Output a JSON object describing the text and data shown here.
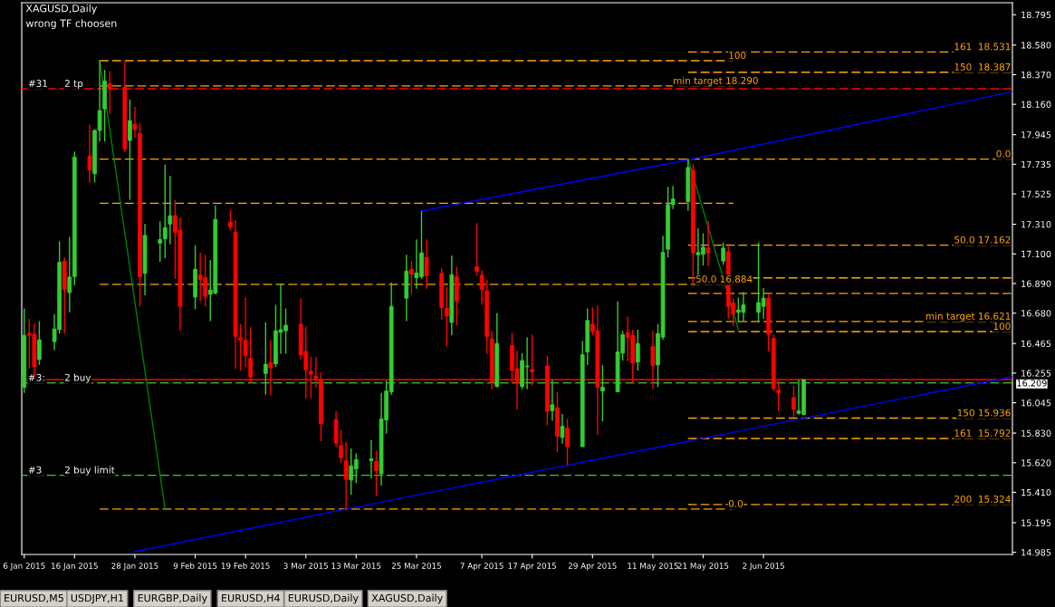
{
  "chart_data": {
    "type": "candlestick",
    "title": "XAGUSD,Daily",
    "subtitle": "wrong TF choosen",
    "x": [
      "2015-01-06",
      "2015-01-07",
      "2015-01-08",
      "2015-01-09",
      "2015-01-12",
      "2015-01-13",
      "2015-01-14",
      "2015-01-15",
      "2015-01-16",
      "2015-01-19",
      "2015-01-20",
      "2015-01-21",
      "2015-01-22",
      "2015-01-23",
      "2015-01-26",
      "2015-01-27",
      "2015-01-28",
      "2015-01-29",
      "2015-01-30",
      "2015-02-02",
      "2015-02-03",
      "2015-02-04",
      "2015-02-05",
      "2015-02-06",
      "2015-02-09",
      "2015-02-10",
      "2015-02-11",
      "2015-02-12",
      "2015-02-13",
      "2015-02-16",
      "2015-02-17",
      "2015-02-18",
      "2015-02-19",
      "2015-02-20",
      "2015-02-23",
      "2015-02-24",
      "2015-02-25",
      "2015-02-26",
      "2015-02-27",
      "2015-03-02",
      "2015-03-03",
      "2015-03-04",
      "2015-03-05",
      "2015-03-06",
      "2015-03-09",
      "2015-03-10",
      "2015-03-11",
      "2015-03-12",
      "2015-03-13",
      "2015-03-16",
      "2015-03-17",
      "2015-03-18",
      "2015-03-19",
      "2015-03-20",
      "2015-03-23",
      "2015-03-24",
      "2015-03-25",
      "2015-03-26",
      "2015-03-27",
      "2015-03-30",
      "2015-03-31",
      "2015-04-01",
      "2015-04-02",
      "2015-04-06",
      "2015-04-07",
      "2015-04-08",
      "2015-04-09",
      "2015-04-10",
      "2015-04-13",
      "2015-04-14",
      "2015-04-15",
      "2015-04-16",
      "2015-04-17",
      "2015-04-20",
      "2015-04-21",
      "2015-04-22",
      "2015-04-23",
      "2015-04-24",
      "2015-04-27",
      "2015-04-28",
      "2015-04-29",
      "2015-04-30",
      "2015-05-01",
      "2015-05-04",
      "2015-05-05",
      "2015-05-06",
      "2015-05-07",
      "2015-05-08",
      "2015-05-11",
      "2015-05-12",
      "2015-05-13",
      "2015-05-14",
      "2015-05-15",
      "2015-05-18",
      "2015-05-19",
      "2015-05-20",
      "2015-05-21",
      "2015-05-22",
      "2015-05-25",
      "2015-05-26",
      "2015-05-27",
      "2015-05-28",
      "2015-05-29",
      "2015-06-01",
      "2015-06-02",
      "2015-06-03",
      "2015-06-04",
      "2015-06-05",
      "2015-06-08",
      "2015-06-09",
      "2015-06-10"
    ],
    "ohlc": [
      [
        16.155,
        16.713,
        16.115,
        16.523
      ],
      [
        16.536,
        16.641,
        16.286,
        16.523
      ],
      [
        16.531,
        16.607,
        16.228,
        16.299
      ],
      [
        16.352,
        16.623,
        16.313,
        16.491
      ],
      [
        16.478,
        16.673,
        16.418,
        16.568
      ],
      [
        16.563,
        17.189,
        16.536,
        17.041
      ],
      [
        17.049,
        17.076,
        16.536,
        16.847
      ],
      [
        16.826,
        17.22,
        16.686,
        16.936
      ],
      [
        16.939,
        17.825,
        16.878,
        17.786
      ],
      [
        17.794,
        18.016,
        17.602,
        17.694
      ],
      [
        17.668,
        17.983,
        17.607,
        17.975
      ],
      [
        17.975,
        18.47,
        17.896,
        18.115
      ],
      [
        18.128,
        18.404,
        17.896,
        18.325
      ],
      [
        18.307,
        18.396,
        18.094,
        18.27
      ],
      [
        18.281,
        18.465,
        17.82,
        17.844
      ],
      [
        17.904,
        18.194,
        17.483,
        18.044
      ],
      [
        18.018,
        18.141,
        17.923,
        17.981
      ],
      [
        17.954,
        18.028,
        16.728,
        16.939
      ],
      [
        16.962,
        17.312,
        16.807,
        17.231
      ],
      [
        17.176,
        17.331,
        17.044,
        17.202
      ],
      [
        17.207,
        17.733,
        17.07,
        17.286
      ],
      [
        17.312,
        17.654,
        17.168,
        17.37
      ],
      [
        17.37,
        17.483,
        16.923,
        17.252
      ],
      [
        17.268,
        17.357,
        16.555,
        16.728
      ],
      [
        16.794,
        17.162,
        16.707,
        16.991
      ],
      [
        16.949,
        17.11,
        16.765,
        16.918
      ],
      [
        16.931,
        17.094,
        16.728,
        16.799
      ],
      [
        16.813,
        17.057,
        16.623,
        16.844
      ],
      [
        16.823,
        17.444,
        16.813,
        17.344
      ],
      [
        17.326,
        17.41,
        17.265,
        17.291
      ],
      [
        17.254,
        17.339,
        16.286,
        16.515
      ],
      [
        16.505,
        16.602,
        16.273,
        16.489
      ],
      [
        16.489,
        16.794,
        16.299,
        16.378
      ],
      [
        16.36,
        16.581,
        16.181,
        16.228
      ],
      [
        16.252,
        16.615,
        16.102,
        16.318
      ],
      [
        16.331,
        16.492,
        16.097,
        16.292
      ],
      [
        16.321,
        16.739,
        16.299,
        16.555
      ],
      [
        16.544,
        16.891,
        16.392,
        16.563
      ],
      [
        16.555,
        16.713,
        16.392,
        16.594
      ],
      [
        16.602,
        16.786,
        16.352,
        16.384
      ],
      [
        16.41,
        16.584,
        16.076,
        16.278
      ],
      [
        16.268,
        16.37,
        16.076,
        16.247
      ],
      [
        16.234,
        16.37,
        16.155,
        16.213
      ],
      [
        16.207,
        16.26,
        15.773,
        15.897
      ],
      [
        15.926,
        15.984,
        15.734,
        15.76
      ],
      [
        15.742,
        15.852,
        15.615,
        15.655
      ],
      [
        15.634,
        15.768,
        15.292,
        15.502
      ],
      [
        15.497,
        15.721,
        15.392,
        15.597
      ],
      [
        15.576,
        15.686,
        15.476,
        15.642
      ],
      [
        15.634,
        15.781,
        15.51,
        15.647
      ],
      [
        15.629,
        15.708,
        15.384,
        15.563
      ],
      [
        15.542,
        16.115,
        15.458,
        15.931
      ],
      [
        15.923,
        16.202,
        15.826,
        16.128
      ],
      [
        16.123,
        16.897,
        16.102,
        16.728
      ],
      [
        16.786,
        17.094,
        16.623,
        16.978
      ],
      [
        16.991,
        17.049,
        16.813,
        16.957
      ],
      [
        16.931,
        17.202,
        16.852,
        16.965
      ],
      [
        16.939,
        17.404,
        16.923,
        17.107
      ],
      [
        17.076,
        17.202,
        16.852,
        16.944
      ],
      [
        16.962,
        17.002,
        16.634,
        16.72
      ],
      [
        16.713,
        16.865,
        16.444,
        16.66
      ],
      [
        16.615,
        17.089,
        16.523,
        16.952
      ],
      [
        16.939,
        17.01,
        16.594,
        16.765
      ],
      [
        17.01,
        17.318,
        16.944,
        16.976
      ],
      [
        16.949,
        16.984,
        16.739,
        16.847
      ],
      [
        16.839,
        16.918,
        16.392,
        16.515
      ],
      [
        16.497,
        16.555,
        16.142,
        16.189
      ],
      [
        16.16,
        16.681,
        16.155,
        16.465
      ],
      [
        16.452,
        16.542,
        16.181,
        16.273
      ],
      [
        16.286,
        16.413,
        15.997,
        16.181
      ],
      [
        16.16,
        16.397,
        16.142,
        16.344
      ],
      [
        16.3,
        16.51,
        16.142,
        16.305
      ],
      [
        16.281,
        16.528,
        16.168,
        16.265
      ],
      [
        16.305,
        16.378,
        15.886,
        15.984
      ],
      [
        15.989,
        16.207,
        15.918,
        16.031
      ],
      [
        16.01,
        16.123,
        15.694,
        15.807
      ],
      [
        15.799,
        15.965,
        15.755,
        15.879
      ],
      [
        15.865,
        15.931,
        15.602,
        15.734
      ],
      [
        15.734,
        16.484,
        15.734,
        16.386
      ],
      [
        16.405,
        16.713,
        16.313,
        16.628
      ],
      [
        16.602,
        16.72,
        16.523,
        16.549
      ],
      [
        16.555,
        16.734,
        15.818,
        16.155
      ],
      [
        16.128,
        16.313,
        15.913,
        16.155
      ],
      [
        16.123,
        16.765,
        16.123,
        16.405
      ],
      [
        16.397,
        16.555,
        16.344,
        16.528
      ],
      [
        16.541,
        16.655,
        16.339,
        16.51
      ],
      [
        16.523,
        16.563,
        16.181,
        16.326
      ],
      [
        16.334,
        16.563,
        16.273,
        16.465
      ],
      [
        16.444,
        16.555,
        16.142,
        16.308
      ],
      [
        16.313,
        16.602,
        16.155,
        16.536
      ],
      [
        16.51,
        17.228,
        16.492,
        17.11
      ],
      [
        17.133,
        17.575,
        17.076,
        17.449
      ],
      [
        17.449,
        17.581,
        17.418,
        17.489
      ],
      [
        17.47,
        17.773,
        17.405,
        17.712
      ],
      [
        17.694,
        17.739,
        16.878,
        17.107
      ],
      [
        17.094,
        17.281,
        16.949,
        17.11
      ],
      [
        17.097,
        17.247,
        17.018,
        17.147
      ],
      [
        17.141,
        17.333,
        17.015,
        17.107
      ],
      [
        17.049,
        17.181,
        17.023,
        17.141
      ],
      [
        17.115,
        17.155,
        16.641,
        16.728
      ],
      [
        16.752,
        16.786,
        16.589,
        16.673
      ],
      [
        16.686,
        16.791,
        16.615,
        16.702
      ],
      [
        16.686,
        16.831,
        16.623,
        16.739
      ],
      [
        16.686,
        17.181,
        16.615,
        16.755
      ],
      [
        16.728,
        16.857,
        16.641,
        16.786
      ],
      [
        16.786,
        16.813,
        16.41,
        16.531
      ],
      [
        16.502,
        16.528,
        16.128,
        16.147
      ],
      [
        16.134,
        16.202,
        15.984,
        16.115
      ],
      [
        16.081,
        16.168,
        15.939,
        15.997
      ],
      [
        15.97,
        16.207,
        15.962,
        15.989
      ],
      [
        15.962,
        16.212,
        15.957,
        16.209
      ]
    ],
    "colors": [
      "#32cd32",
      "#ff0000",
      "#ff0000",
      "#32cd32",
      "#32cd32",
      "#32cd32",
      "#ff0000",
      "#32cd32",
      "#32cd32",
      "#ff0000",
      "#32cd32",
      "#32cd32",
      "#32cd32",
      "#ff0000",
      "#ff0000",
      "#32cd32",
      "#ff0000",
      "#ff0000",
      "#32cd32",
      "#32cd32",
      "#32cd32",
      "#32cd32",
      "#ff0000",
      "#ff0000",
      "#32cd32",
      "#ff0000",
      "#ff0000",
      "#32cd32",
      "#32cd32",
      "#ff0000",
      "#ff0000",
      "#ff0000",
      "#ff0000",
      "#ff0000",
      "#32cd32",
      "#ff0000",
      "#32cd32",
      "#32cd32",
      "#32cd32",
      "#ff0000",
      "#ff0000",
      "#ff0000",
      "#ff0000",
      "#ff0000",
      "#ff0000",
      "#ff0000",
      "#ff0000",
      "#32cd32",
      "#32cd32",
      "#32cd32",
      "#ff0000",
      "#32cd32",
      "#32cd32",
      "#32cd32",
      "#32cd32",
      "#ff0000",
      "#32cd32",
      "#32cd32",
      "#ff0000",
      "#ff0000",
      "#ff0000",
      "#32cd32",
      "#ff0000",
      "#ff0000",
      "#ff0000",
      "#ff0000",
      "#ff0000",
      "#32cd32",
      "#ff0000",
      "#ff0000",
      "#32cd32",
      "#32cd32",
      "#ff0000",
      "#ff0000",
      "#32cd32",
      "#ff0000",
      "#32cd32",
      "#ff0000",
      "#32cd32",
      "#32cd32",
      "#ff0000",
      "#ff0000",
      "#32cd32",
      "#32cd32",
      "#32cd32",
      "#ff0000",
      "#ff0000",
      "#32cd32",
      "#ff0000",
      "#32cd32",
      "#32cd32",
      "#32cd32",
      "#32cd32",
      "#32cd32",
      "#ff0000",
      "#32cd32",
      "#32cd32",
      "#ff0000",
      "#32cd32",
      "#ff0000",
      "#ff0000",
      "#32cd32",
      "#32cd32",
      "#32cd32",
      "#32cd32",
      "#ff0000",
      "#ff0000",
      "#ff0000",
      "#ff0000",
      "#32cd32",
      "#32cd32"
    ],
    "series": [
      {
        "type": "line",
        "x": [
          "2015-01-21",
          "2015-05-27"
        ],
        "values": [
          18.469,
          18.469
        ],
        "color": "#ffa500",
        "line_style": "dashed"
      },
      {
        "type": "line",
        "x": [
          "2015-01-21",
          "2015-05-27"
        ],
        "values": [
          18.29,
          18.29
        ],
        "color": "#ffa500",
        "line_style": "dashed"
      },
      {
        "type": "line",
        "x": [
          "2015-01-21",
          "2015-07-21T12:00"
        ],
        "values": [
          17.772,
          17.772
        ],
        "color": "#ffa500",
        "line_style": "dashed"
      },
      {
        "type": "line",
        "x": [
          "2015-01-21",
          "2015-05-27"
        ],
        "values": [
          17.459,
          17.459
        ],
        "color": "#ffa500",
        "line_style": "dashed"
      },
      {
        "type": "line",
        "x": [
          "2015-01-21",
          "2015-05-27"
        ],
        "values": [
          16.884,
          16.884
        ],
        "color": "#ffa500",
        "line_style": "dashed"
      },
      {
        "type": "line",
        "x": [
          "2015-01-21",
          "2015-05-27"
        ],
        "values": [
          15.292,
          15.292
        ],
        "color": "#ffa500",
        "line_style": "dashed"
      },
      {
        "type": "line",
        "x": [
          "2015-05-18",
          "2015-07-21T12:00"
        ],
        "values": [
          18.531,
          18.531
        ],
        "color": "#ffa500",
        "line_style": "dashed"
      },
      {
        "type": "line",
        "x": [
          "2015-05-18",
          "2015-07-21T12:00"
        ],
        "values": [
          18.387,
          18.387
        ],
        "color": "#ffa500",
        "line_style": "dashed"
      },
      {
        "type": "line",
        "x": [
          "2015-05-18",
          "2015-07-21T12:00"
        ],
        "values": [
          17.162,
          17.162
        ],
        "color": "#ffa500",
        "line_style": "dashed"
      },
      {
        "type": "line",
        "x": [
          "2015-05-18",
          "2015-07-21T12:00"
        ],
        "values": [
          16.93,
          16.93
        ],
        "color": "#ffa500",
        "line_style": "dashed"
      },
      {
        "type": "line",
        "x": [
          "2015-05-18",
          "2015-07-21T12:00"
        ],
        "values": [
          16.82,
          16.82
        ],
        "color": "#ffa500",
        "line_style": "dashed"
      },
      {
        "type": "line",
        "x": [
          "2015-05-18",
          "2015-07-21T12:00"
        ],
        "values": [
          16.621,
          16.621
        ],
        "color": "#ffa500",
        "line_style": "dashed"
      },
      {
        "type": "line",
        "x": [
          "2015-05-18",
          "2015-07-21T12:00"
        ],
        "values": [
          16.549,
          16.549
        ],
        "color": "#ffa500",
        "line_style": "dashed"
      },
      {
        "type": "line",
        "x": [
          "2015-05-18",
          "2015-07-21T12:00"
        ],
        "values": [
          15.936,
          15.936
        ],
        "color": "#ffa500",
        "line_style": "dashed"
      },
      {
        "type": "line",
        "x": [
          "2015-05-18",
          "2015-07-21T12:00"
        ],
        "values": [
          15.792,
          15.792
        ],
        "color": "#ffa500",
        "line_style": "dashed"
      },
      {
        "type": "line",
        "x": [
          "2015-05-18",
          "2015-07-21T12:00"
        ],
        "values": [
          15.324,
          15.324
        ],
        "color": "#ffa500",
        "line_style": "dashed"
      },
      {
        "type": "line",
        "x": [
          "2015-03-26",
          "2015-05-18",
          "2015-07-21T12:00"
        ],
        "values": [
          17.404,
          17.766,
          18.25
        ],
        "color": "#0000ff",
        "line_style": "solid"
      },
      {
        "type": "line",
        "x": [
          "2015-01-28",
          "2015-03-11",
          "2015-04-24",
          "2015-07-21T12:00"
        ],
        "values": [
          14.99,
          15.292,
          15.602,
          16.23
        ],
        "color": "#0000ff",
        "line_style": "solid"
      },
      {
        "type": "line",
        "x": [
          "2015-01-21",
          "2015-02-03"
        ],
        "values": [
          18.47,
          15.292
        ],
        "color": "#008000",
        "line_style": "solid"
      },
      {
        "type": "line",
        "x": [
          "2015-05-18",
          "2015-05-28"
        ],
        "values": [
          17.773,
          16.564
        ],
        "color": "#008000",
        "line_style": "solid"
      }
    ],
    "ref_lines": [
      {
        "axis": "y",
        "value": 18.27,
        "color": "#ff0000",
        "line_style": "dashed"
      },
      {
        "axis": "y",
        "value": 16.186,
        "color": "#32cd32",
        "line_style": "dashed"
      },
      {
        "axis": "y",
        "value": 15.531,
        "color": "#32cd32",
        "line_style": "dashed"
      },
      {
        "axis": "y",
        "value": 16.209,
        "label": "16.209",
        "color": "#ff0000",
        "line_style": "solid"
      }
    ],
    "annotations": [
      {
        "text": "#31",
        "x": "2015-01-06T18:00",
        "y": 18.27
      },
      {
        "text": "2 tp",
        "x": "2015-01-14",
        "y": 18.27
      },
      {
        "text": "#3:",
        "x": "2015-01-06T18:00",
        "y": 16.186
      },
      {
        "text": "2 buy",
        "x": "2015-01-14",
        "y": 16.186
      },
      {
        "text": "#3",
        "x": "2015-01-06T18:00",
        "y": 15.531
      },
      {
        "text": "2 buy limit",
        "x": "2015-01-14",
        "y": 15.531
      },
      {
        "text": "100",
        "x": "2015-05-26",
        "y": 18.469
      },
      {
        "text": "min target 18.290",
        "x": "2015-05-15",
        "y": 18.29
      },
      {
        "text": "50.0 16.884",
        "x": "2015-05-19T12:00",
        "y": 16.884
      },
      {
        "text": "0.0",
        "x": "2015-05-26",
        "y": 15.292
      },
      {
        "text": "161  18.531",
        "y": 18.531
      },
      {
        "text": "150  18.387",
        "y": 18.387
      },
      {
        "text": "0.0",
        "y": 17.772
      },
      {
        "text": "50.0 17.162",
        "y": 17.162
      },
      {
        "text": "min target 16.621",
        "y": 16.621
      },
      {
        "text": "100",
        "y": 16.549
      },
      {
        "text": "150 15.936",
        "y": 15.936
      },
      {
        "text": "161  15.792",
        "y": 15.792
      },
      {
        "text": "200  15.324",
        "y": 15.324
      },
      "EURUSD,M5",
      "USDJPY,H1",
      "EURGBP,Daily",
      "EURUSD,H4",
      "EURUSD,Daily",
      "XAGUSD,Daily"
    ],
    "xlim": [
      "2015-01-05T12:00",
      "2015-07-21T12:00"
    ],
    "xticks": [
      {
        "value": "2015-01-06",
        "label": "6 Jan 2015"
      },
      {
        "value": "2015-01-16",
        "label": "16 Jan 2015"
      },
      {
        "value": "2015-01-28",
        "label": "28 Jan 2015"
      },
      {
        "value": "2015-02-09",
        "label": "9 Feb 2015"
      },
      {
        "value": "2015-02-19",
        "label": "19 Feb 2015"
      },
      {
        "value": "2015-03-03",
        "label": "3 Mar 2015"
      },
      {
        "value": "2015-03-13",
        "label": "13 Mar 2015"
      },
      {
        "value": "2015-03-25",
        "label": "25 Mar 2015"
      },
      {
        "value": "2015-04-07",
        "label": "7 Apr 2015"
      },
      {
        "value": "2015-04-17",
        "label": "17 Apr 2015"
      },
      {
        "value": "2015-04-29",
        "label": "29 Apr 2015"
      },
      {
        "value": "2015-05-11",
        "label": "11 May 2015"
      },
      {
        "value": "2015-05-21",
        "label": "21 May 2015"
      },
      {
        "value": "2015-06-02",
        "label": "2 Jun 2015"
      }
    ],
    "ylim": [
      14.97,
      18.88
    ],
    "yticks": [
      {
        "value": 14.985,
        "label": "14.985"
      },
      {
        "value": 15.195,
        "label": "15.195"
      },
      {
        "value": 15.41,
        "label": "15.410"
      },
      {
        "value": 15.62,
        "label": "15.620"
      },
      {
        "value": 15.83,
        "label": "15.830"
      },
      {
        "value": 16.045,
        "label": "16.045"
      },
      {
        "value": 16.255,
        "label": "16.255"
      },
      {
        "value": 16.465,
        "label": "16.465"
      },
      {
        "value": 16.68,
        "label": "16.680"
      },
      {
        "value": 16.89,
        "label": "16.890"
      },
      {
        "value": 17.1,
        "label": "17.100"
      },
      {
        "value": 17.31,
        "label": "17.310"
      },
      {
        "value": 17.525,
        "label": "17.525"
      },
      {
        "value": 17.735,
        "label": "17.735"
      },
      {
        "value": 17.945,
        "label": "17.945"
      },
      {
        "value": 18.16,
        "label": "18.160"
      },
      {
        "value": 18.37,
        "label": "18.370"
      },
      {
        "value": 18.58,
        "label": "18.580"
      },
      {
        "value": 18.795,
        "label": "18.795"
      }
    ]
  }
}
